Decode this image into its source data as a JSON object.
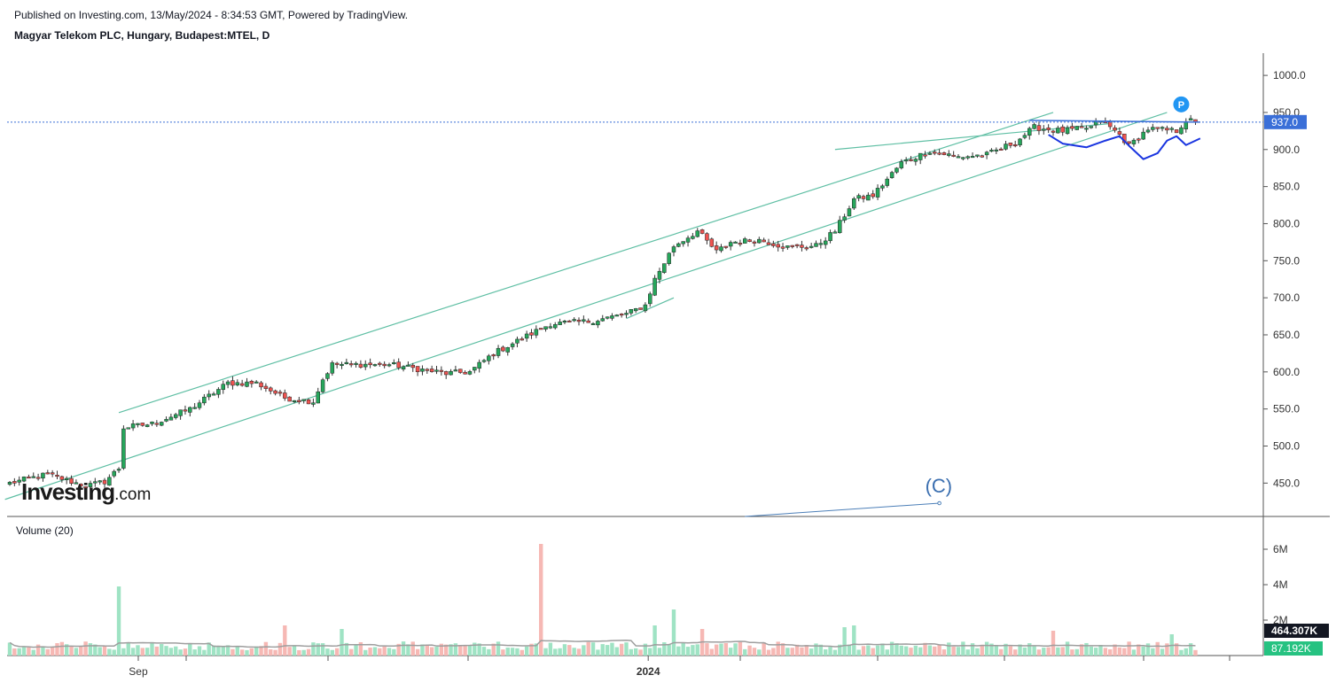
{
  "header": {
    "published": "Published on Investing.com, 13/May/2024 - 8:34:53 GMT, Powered by TradingView.",
    "title": "Magyar Telekom PLC, Hungary, Budapest:MTEL, D"
  },
  "branding": {
    "word": "Investing",
    "suffix": ".com"
  },
  "colors": {
    "up": "#26a65b",
    "down": "#ef5350",
    "vol_up": "#9fe3c4",
    "vol_down": "#f6b8b4",
    "channel": "#5fbfa4",
    "price_line": "#3a6fd8",
    "pattern": "#1a35e0",
    "ma": "#9e9e9e",
    "axis": "#444444"
  },
  "chart_data": {
    "type": "candlestick",
    "price_axis": {
      "min": 405,
      "max": 1030,
      "ticks": [
        450,
        500,
        550,
        600,
        650,
        700,
        750,
        800,
        850,
        900,
        950,
        1000
      ],
      "tick_labels": [
        "450.0",
        "500.0",
        "550.0",
        "600.0",
        "650.0",
        "700.0",
        "750.0",
        "800.0",
        "850.0",
        "900.0",
        "950.0",
        "1000.0"
      ]
    },
    "time_axis": {
      "labels": [
        "Sep",
        "2024"
      ],
      "label_dates": [
        "2023-09-01",
        "2024-01-02"
      ],
      "start": "2023-08-01",
      "end": "2024-05-13"
    },
    "last_price": 937.0,
    "last_price_label": "937.0",
    "marker_label": "P",
    "wave_label": "(C)",
    "volume": {
      "title": "Volume (20)",
      "axis_ticks": [
        2000000,
        4000000,
        6000000
      ],
      "axis_labels": [
        "2M",
        "4M",
        "6M"
      ],
      "max": 7000000,
      "ma_last": "464.307K",
      "last": "87.192K"
    },
    "waypoints": [
      [
        0,
        450
      ],
      [
        8,
        462
      ],
      [
        16,
        446
      ],
      [
        20,
        452
      ],
      [
        23,
        470
      ],
      [
        24,
        525
      ],
      [
        30,
        530
      ],
      [
        38,
        550
      ],
      [
        46,
        585
      ],
      [
        52,
        585
      ],
      [
        58,
        565
      ],
      [
        64,
        560
      ],
      [
        66,
        590
      ],
      [
        68,
        610
      ],
      [
        80,
        610
      ],
      [
        92,
        598
      ],
      [
        97,
        600
      ],
      [
        102,
        625
      ],
      [
        108,
        645
      ],
      [
        114,
        665
      ],
      [
        122,
        668
      ],
      [
        130,
        678
      ],
      [
        134,
        690
      ],
      [
        136,
        725
      ],
      [
        140,
        770
      ],
      [
        145,
        790
      ],
      [
        149,
        762
      ],
      [
        152,
        775
      ],
      [
        158,
        778
      ],
      [
        164,
        768
      ],
      [
        170,
        770
      ],
      [
        174,
        790
      ],
      [
        178,
        833
      ],
      [
        182,
        838
      ],
      [
        188,
        882
      ],
      [
        194,
        898
      ],
      [
        200,
        890
      ],
      [
        206,
        893
      ],
      [
        212,
        910
      ],
      [
        216,
        930
      ],
      [
        222,
        925
      ],
      [
        228,
        930
      ],
      [
        230,
        940
      ],
      [
        234,
        920
      ],
      [
        236,
        905
      ],
      [
        240,
        928
      ],
      [
        246,
        925
      ],
      [
        248,
        940
      ],
      [
        250,
        937
      ]
    ],
    "volume_spikes": {
      "23": 3900000,
      "58": 1700000,
      "70": 1500000,
      "112": 6300000,
      "136": 1700000,
      "140": 2600000,
      "146": 1500000,
      "176": 1600000,
      "178": 1700000,
      "220": 1400000,
      "245": 1200000
    }
  }
}
